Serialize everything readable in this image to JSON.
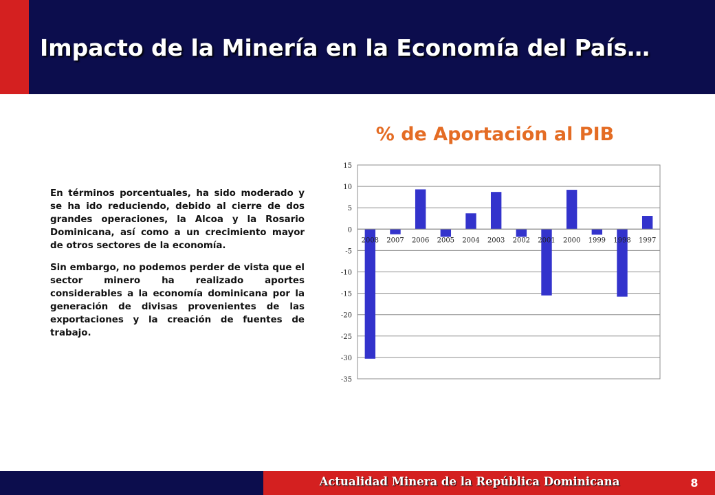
{
  "slide": {
    "title": "Impacto de la Minería en la Economía del País…",
    "paragraphs": [
      "En términos porcentuales, ha sido moderado y se ha ido reduciendo, debido al cierre de dos grandes operaciones, la Alcoa y la Rosario Dominicana, así como a un crecimiento mayor de otros sectores de la economía.",
      "Sin embargo, no podemos perder de vista que el sector minero ha realizado aportes considerables a la economía dominicana por la generación de divisas provenientes de las exportaciones y la creación de fuentes de trabajo."
    ],
    "footer_text": "Actualidad Minera de la República Dominicana",
    "page_number": "8"
  },
  "colors": {
    "header_navy": "#0c0d4d",
    "accent_red": "#d42020",
    "title_orange": "#e46c24",
    "bar_blue": "#3333cc"
  },
  "chart_data": {
    "type": "bar",
    "title": "% de Aportación al PIB",
    "categories": [
      "2008",
      "2007",
      "2006",
      "2005",
      "2004",
      "2003",
      "2002",
      "2001",
      "2000",
      "1999",
      "1998",
      "1997"
    ],
    "values": [
      -30.3,
      -1.2,
      9.3,
      -1.8,
      3.7,
      8.7,
      -1.8,
      -15.5,
      9.2,
      -1.3,
      -15.8,
      3.1
    ],
    "ylim": [
      -35,
      15
    ],
    "yticks": [
      15,
      10,
      5,
      0,
      -5,
      -10,
      -15,
      -20,
      -25,
      -30,
      -35
    ],
    "grid": true,
    "legend": "none"
  }
}
